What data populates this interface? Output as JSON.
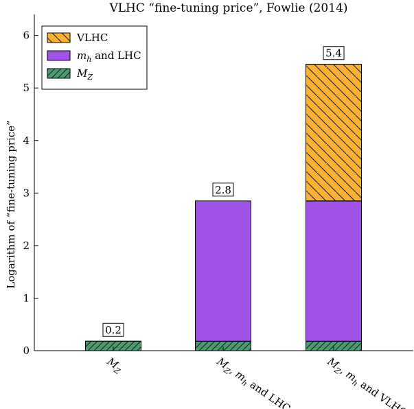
{
  "chart_data": {
    "type": "bar",
    "stacked": true,
    "title": "VLHC “fine-tuning price”, Fowlie (2014)",
    "xlabel": "",
    "ylabel": "Logarithm of “fine-tuning price”",
    "ylim": [
      0,
      6.4
    ],
    "yticks": [
      0,
      1,
      2,
      3,
      4,
      5,
      6
    ],
    "ytick_labels": [
      "0",
      "1",
      "2",
      "3",
      "4",
      "5",
      "6"
    ],
    "grid": false,
    "legend_position": "top-left",
    "categories": [
      "M_Z",
      "M_Z, m_h and LHC",
      "M_Z, m_h and VLHC"
    ],
    "category_labels": [
      [
        {
          "t": "M",
          "i": true
        },
        {
          "t": "Z",
          "i": true,
          "sub": true
        }
      ],
      [
        {
          "t": "M",
          "i": true
        },
        {
          "t": "Z",
          "i": true,
          "sub": true
        },
        {
          "t": ", "
        },
        {
          "t": "m",
          "i": true
        },
        {
          "t": "h",
          "i": true,
          "sub": true
        },
        {
          "t": " and LHC"
        }
      ],
      [
        {
          "t": "M",
          "i": true
        },
        {
          "t": "Z",
          "i": true,
          "sub": true
        },
        {
          "t": ", "
        },
        {
          "t": "m",
          "i": true
        },
        {
          "t": "h",
          "i": true,
          "sub": true
        },
        {
          "t": " and VLHC"
        }
      ]
    ],
    "series": [
      {
        "key": "mz",
        "name": "M_Z",
        "legend": [
          {
            "t": "M",
            "i": true
          },
          {
            "t": "Z",
            "i": true,
            "sub": true
          }
        ],
        "color": "#4a9c6f",
        "hatch": "forward",
        "values": [
          0.18,
          0.18,
          0.18
        ]
      },
      {
        "key": "mh",
        "name": "m_h and LHC",
        "legend": [
          {
            "t": "m",
            "i": true
          },
          {
            "t": "h",
            "i": true,
            "sub": true
          },
          {
            "t": " and LHC"
          }
        ],
        "color": "#9f52e6",
        "hatch": "none",
        "values": [
          0,
          2.67,
          2.67
        ]
      },
      {
        "key": "vlhc",
        "name": "VLHC",
        "legend": [
          {
            "t": "VLHC"
          }
        ],
        "color": "#fbb232",
        "hatch": "back",
        "values": [
          0,
          0,
          2.6
        ]
      }
    ],
    "legend_order": [
      "vlhc",
      "mh",
      "mz"
    ],
    "data_labels": [
      "0.2",
      "2.8",
      "5.4"
    ]
  }
}
